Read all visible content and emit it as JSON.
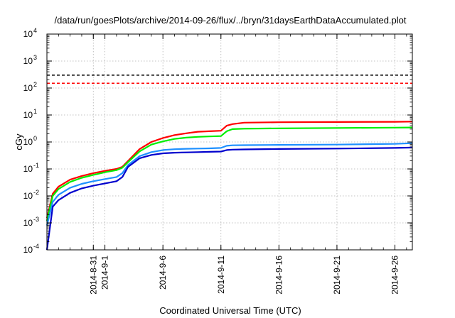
{
  "chart_data": {
    "type": "line",
    "title": "/data/run/goesPlots/archive/2014-09-26/flux/../bryn/31daysEarthDataAccumulated.plot",
    "xlabel": "Coordinated Universal Time (UTC)",
    "ylabel": "cGy",
    "yscale": "log",
    "ylim": [
      0.0001,
      10000
    ],
    "xlim": [
      "2014-08-27",
      "2014-09-27T12:00"
    ],
    "grid": true,
    "y_ticks": [
      {
        "base": "10",
        "exp": "-4",
        "value": 0.0001
      },
      {
        "base": "10",
        "exp": "-3",
        "value": 0.001
      },
      {
        "base": "10",
        "exp": "-2",
        "value": 0.01
      },
      {
        "base": "10",
        "exp": "-1",
        "value": 0.1
      },
      {
        "base": "10",
        "exp": "0",
        "value": 1
      },
      {
        "base": "10",
        "exp": "1",
        "value": 10
      },
      {
        "base": "10",
        "exp": "2",
        "value": 100
      },
      {
        "base": "10",
        "exp": "3",
        "value": 1000
      },
      {
        "base": "10",
        "exp": "4",
        "value": 10000
      }
    ],
    "x_ticks": [
      {
        "label": "2014-8-31",
        "date": "2014-08-31"
      },
      {
        "label": "2014-9-1",
        "date": "2014-09-01"
      },
      {
        "label": "2014-9-6",
        "date": "2014-09-06"
      },
      {
        "label": "2014-9-11",
        "date": "2014-09-11"
      },
      {
        "label": "2014-9-16",
        "date": "2014-09-16"
      },
      {
        "label": "2014-9-21",
        "date": "2014-09-21"
      },
      {
        "label": "2014-9-26",
        "date": "2014-09-26"
      }
    ],
    "reference_lines": [
      {
        "value": 300,
        "color": "#000000",
        "style": "dashed"
      },
      {
        "value": 150,
        "color": "#ff0000",
        "style": "dashed"
      }
    ],
    "series": [
      {
        "color": "#ff0000",
        "points": [
          [
            "2014-08-27",
            0.0015
          ],
          [
            "2014-08-27T12:00",
            0.012
          ],
          [
            "2014-08-28",
            0.022
          ],
          [
            "2014-08-29",
            0.04
          ],
          [
            "2014-08-30",
            0.055
          ],
          [
            "2014-08-31",
            0.07
          ],
          [
            "2014-09-01",
            0.085
          ],
          [
            "2014-09-02",
            0.1
          ],
          [
            "2014-09-02T12:00",
            0.12
          ],
          [
            "2014-09-03",
            0.2
          ],
          [
            "2014-09-04",
            0.55
          ],
          [
            "2014-09-05",
            1.0
          ],
          [
            "2014-09-06",
            1.4
          ],
          [
            "2014-09-07",
            1.8
          ],
          [
            "2014-09-08",
            2.1
          ],
          [
            "2014-09-09",
            2.4
          ],
          [
            "2014-09-10",
            2.5
          ],
          [
            "2014-09-11",
            2.6
          ],
          [
            "2014-09-11T12:00",
            4.0
          ],
          [
            "2014-09-12",
            4.6
          ],
          [
            "2014-09-13",
            5.2
          ],
          [
            "2014-09-16",
            5.4
          ],
          [
            "2014-09-21",
            5.5
          ],
          [
            "2014-09-26",
            5.6
          ],
          [
            "2014-09-27T12:00",
            5.7
          ]
        ]
      },
      {
        "color": "#00ee00",
        "points": [
          [
            "2014-08-27",
            0.0012
          ],
          [
            "2014-08-27T12:00",
            0.01
          ],
          [
            "2014-08-28",
            0.018
          ],
          [
            "2014-08-29",
            0.033
          ],
          [
            "2014-08-30",
            0.047
          ],
          [
            "2014-08-31",
            0.06
          ],
          [
            "2014-09-01",
            0.075
          ],
          [
            "2014-09-02",
            0.09
          ],
          [
            "2014-09-02T12:00",
            0.11
          ],
          [
            "2014-09-03",
            0.18
          ],
          [
            "2014-09-04",
            0.45
          ],
          [
            "2014-09-05",
            0.8
          ],
          [
            "2014-09-06",
            1.05
          ],
          [
            "2014-09-07",
            1.3
          ],
          [
            "2014-09-08",
            1.45
          ],
          [
            "2014-09-09",
            1.55
          ],
          [
            "2014-09-10",
            1.6
          ],
          [
            "2014-09-11",
            1.65
          ],
          [
            "2014-09-11T12:00",
            2.5
          ],
          [
            "2014-09-12",
            3.0
          ],
          [
            "2014-09-13",
            3.1
          ],
          [
            "2014-09-16",
            3.2
          ],
          [
            "2014-09-21",
            3.3
          ],
          [
            "2014-09-26",
            3.4
          ],
          [
            "2014-09-27T12:00",
            3.45
          ]
        ]
      },
      {
        "color": "#1e90ff",
        "points": [
          [
            "2014-08-27",
            0.0008
          ],
          [
            "2014-08-27T12:00",
            0.006
          ],
          [
            "2014-08-28",
            0.011
          ],
          [
            "2014-08-29",
            0.02
          ],
          [
            "2014-08-30",
            0.028
          ],
          [
            "2014-08-31",
            0.035
          ],
          [
            "2014-09-01",
            0.042
          ],
          [
            "2014-09-02",
            0.05
          ],
          [
            "2014-09-02T12:00",
            0.07
          ],
          [
            "2014-09-03",
            0.14
          ],
          [
            "2014-09-04",
            0.3
          ],
          [
            "2014-09-05",
            0.42
          ],
          [
            "2014-09-06",
            0.5
          ],
          [
            "2014-09-07",
            0.54
          ],
          [
            "2014-09-08",
            0.56
          ],
          [
            "2014-09-09",
            0.57
          ],
          [
            "2014-09-10",
            0.58
          ],
          [
            "2014-09-11",
            0.6
          ],
          [
            "2014-09-11T12:00",
            0.72
          ],
          [
            "2014-09-12",
            0.75
          ],
          [
            "2014-09-13",
            0.76
          ],
          [
            "2014-09-16",
            0.78
          ],
          [
            "2014-09-21",
            0.8
          ],
          [
            "2014-09-26",
            0.85
          ],
          [
            "2014-09-27T12:00",
            0.9
          ]
        ]
      },
      {
        "color": "#0000cd",
        "points": [
          [
            "2014-08-27",
            0.0001
          ],
          [
            "2014-08-27T12:00",
            0.004
          ],
          [
            "2014-08-28",
            0.007
          ],
          [
            "2014-08-29",
            0.013
          ],
          [
            "2014-08-30",
            0.019
          ],
          [
            "2014-08-31",
            0.024
          ],
          [
            "2014-09-01",
            0.029
          ],
          [
            "2014-09-02",
            0.035
          ],
          [
            "2014-09-02T12:00",
            0.05
          ],
          [
            "2014-09-03",
            0.12
          ],
          [
            "2014-09-04",
            0.25
          ],
          [
            "2014-09-05",
            0.33
          ],
          [
            "2014-09-06",
            0.38
          ],
          [
            "2014-09-07",
            0.4
          ],
          [
            "2014-09-08",
            0.41
          ],
          [
            "2014-09-09",
            0.42
          ],
          [
            "2014-09-10",
            0.43
          ],
          [
            "2014-09-11",
            0.44
          ],
          [
            "2014-09-11T12:00",
            0.5
          ],
          [
            "2014-09-12",
            0.52
          ],
          [
            "2014-09-13",
            0.53
          ],
          [
            "2014-09-16",
            0.55
          ],
          [
            "2014-09-21",
            0.57
          ],
          [
            "2014-09-26",
            0.6
          ],
          [
            "2014-09-27T12:00",
            0.62
          ]
        ]
      }
    ]
  }
}
